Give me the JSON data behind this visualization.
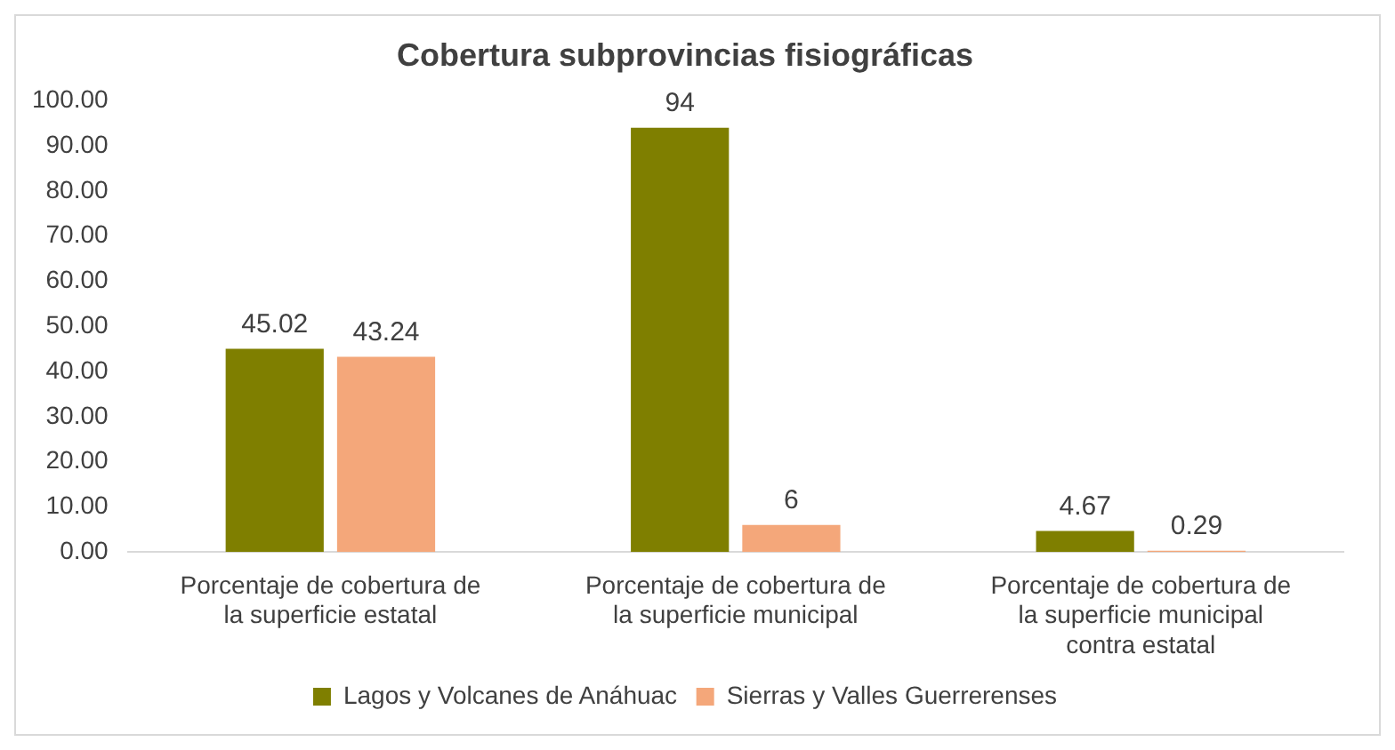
{
  "chart_data": {
    "type": "bar",
    "title": "Cobertura subprovincias fisiográficas",
    "categories": [
      "Porcentaje de cobertura de la superficie estatal",
      "Porcentaje de cobertura de la superficie municipal",
      "Porcentaje de cobertura de la superficie municipal contra estatal"
    ],
    "series": [
      {
        "name": "Lagos y Volcanes de Anáhuac",
        "color": "#7f7f00",
        "values": [
          45.02,
          94,
          4.67
        ]
      },
      {
        "name": "Sierras y Valles Guerrerenses",
        "color": "#f4a77a",
        "values": [
          43.24,
          6,
          0.29
        ]
      }
    ],
    "ylim": [
      0,
      100
    ],
    "yticks": [
      {
        "value": 0,
        "label": "0.00"
      },
      {
        "value": 10,
        "label": "10.00"
      },
      {
        "value": 20,
        "label": "20.00"
      },
      {
        "value": 30,
        "label": "30.00"
      },
      {
        "value": 40,
        "label": "40.00"
      },
      {
        "value": 50,
        "label": "50.00"
      },
      {
        "value": 60,
        "label": "60.00"
      },
      {
        "value": 70,
        "label": "70.00"
      },
      {
        "value": 80,
        "label": "80.00"
      },
      {
        "value": 90,
        "label": "90.00"
      },
      {
        "value": 100,
        "label": "100.00"
      }
    ],
    "grid": false,
    "legend": "bottom",
    "data_labels": true
  }
}
